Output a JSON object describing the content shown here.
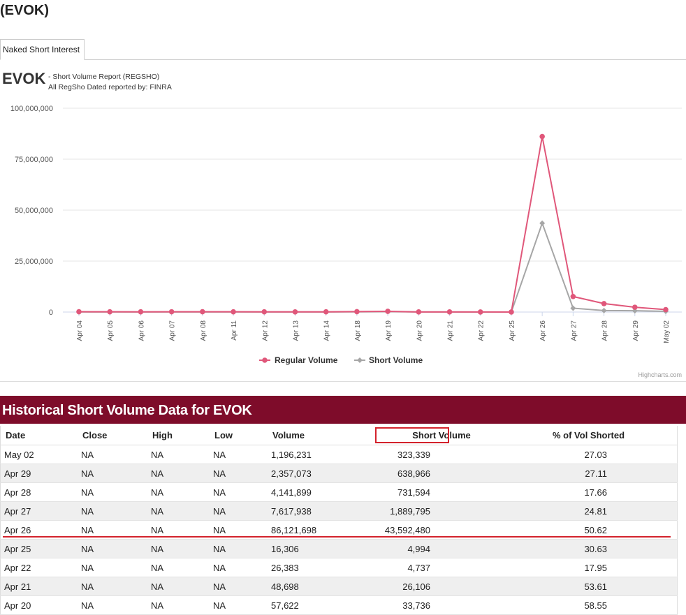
{
  "header": {
    "title": "(EVOK)"
  },
  "tabs": [
    {
      "label": "Naked Short Interest",
      "active": true
    }
  ],
  "report": {
    "ticker": "EVOK",
    "subtitle_line1": "- Short Volume Report  (REGSHO)",
    "subtitle_line2": "All RegSho Dated reported by: FINRA"
  },
  "chart_data": {
    "type": "line",
    "x": [
      "Apr 04",
      "Apr 05",
      "Apr 06",
      "Apr 07",
      "Apr 08",
      "Apr 11",
      "Apr 12",
      "Apr 13",
      "Apr 14",
      "Apr 18",
      "Apr 19",
      "Apr 20",
      "Apr 21",
      "Apr 22",
      "Apr 25",
      "Apr 26",
      "Apr 27",
      "Apr 28",
      "Apr 29",
      "May 02"
    ],
    "series": [
      {
        "name": "Regular Volume",
        "color": "#e0577a",
        "marker": "circle",
        "values": [
          150000,
          120000,
          100000,
          130000,
          140000,
          110000,
          90000,
          80000,
          100000,
          200000,
          350000,
          57622,
          48698,
          26383,
          16306,
          86121698,
          7617938,
          4141899,
          2357073,
          1196231
        ]
      },
      {
        "name": "Short Volume",
        "color": "#a6a6a6",
        "marker": "diamond",
        "values": [
          60000,
          50000,
          40000,
          50000,
          60000,
          40000,
          30000,
          30000,
          40000,
          90000,
          150000,
          33736,
          26106,
          4737,
          4994,
          43592480,
          1889795,
          731594,
          638966,
          323339
        ]
      }
    ],
    "yticks": [
      "100,000,000",
      "75,000,000",
      "50,000,000",
      "25,000,000",
      "0"
    ],
    "ylim": [
      0,
      100000000
    ],
    "grid": true,
    "legend": "bottom-center",
    "credit": "Highcharts.com"
  },
  "table": {
    "title": "Historical Short Volume Data for EVOK",
    "columns": [
      "Date",
      "Close",
      "High",
      "Low",
      "Volume",
      "Short Volume",
      "% of Vol Shorted"
    ],
    "rows": [
      [
        "May 02",
        "NA",
        "NA",
        "NA",
        "1,196,231",
        "323,339",
        "27.03"
      ],
      [
        "Apr 29",
        "NA",
        "NA",
        "NA",
        "2,357,073",
        "638,966",
        "27.11"
      ],
      [
        "Apr 28",
        "NA",
        "NA",
        "NA",
        "4,141,899",
        "731,594",
        "17.66"
      ],
      [
        "Apr 27",
        "NA",
        "NA",
        "NA",
        "7,617,938",
        "1,889,795",
        "24.81"
      ],
      [
        "Apr 26",
        "NA",
        "NA",
        "NA",
        "86,121,698",
        "43,592,480",
        "50.62"
      ],
      [
        "Apr 25",
        "NA",
        "NA",
        "NA",
        "16,306",
        "4,994",
        "30.63"
      ],
      [
        "Apr 22",
        "NA",
        "NA",
        "NA",
        "26,383",
        "4,737",
        "17.95"
      ],
      [
        "Apr 21",
        "NA",
        "NA",
        "NA",
        "48,698",
        "26,106",
        "53.61"
      ],
      [
        "Apr 20",
        "NA",
        "NA",
        "NA",
        "57,622",
        "33,736",
        "58.55"
      ]
    ]
  }
}
